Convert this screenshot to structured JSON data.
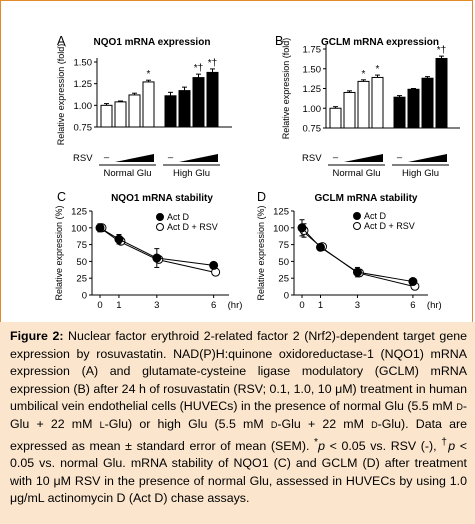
{
  "chart_data": [
    {
      "panel": "A",
      "type": "bar",
      "title": "NQO1 mRNA expression",
      "ylabel": "Relative expression (fold)",
      "ylim": [
        0.75,
        1.5
      ],
      "yticks": [
        "0.75",
        "1.00",
        "1.25",
        "1.50"
      ],
      "treatment_label": "RSV",
      "treatment_levels": [
        "–",
        "",
        "",
        ""
      ],
      "groups": [
        "Normal Glu",
        "High Glu"
      ],
      "categories": [
        "Normal Glu –",
        "Normal Glu 0.1",
        "Normal Glu 1.0",
        "Normal Glu 10",
        "High Glu –",
        "High Glu 0.1",
        "High Glu 1.0",
        "High Glu 10"
      ],
      "values": [
        1.0,
        1.04,
        1.12,
        1.27,
        1.11,
        1.17,
        1.32,
        1.38
      ],
      "errors": [
        0.02,
        0.01,
        0.02,
        0.02,
        0.04,
        0.04,
        0.04,
        0.04
      ],
      "bar_fill": [
        "white",
        "white",
        "white",
        "white",
        "black",
        "black",
        "black",
        "black"
      ],
      "annotations": [
        "",
        "",
        "",
        "*",
        "",
        "",
        "*†",
        "*†"
      ]
    },
    {
      "panel": "B",
      "type": "bar",
      "title": "GCLM mRNA expression",
      "ylabel": "Relative expression (fold)",
      "ylim": [
        0.75,
        1.75
      ],
      "yticks": [
        "0.75",
        "1.00",
        "1.25",
        "1.50",
        "1.75"
      ],
      "treatment_label": "RSV",
      "treatment_levels": [
        "–",
        "",
        "",
        ""
      ],
      "groups": [
        "Normal Glu",
        "High Glu"
      ],
      "categories": [
        "Normal Glu –",
        "Normal Glu 0.1",
        "Normal Glu 1.0",
        "Normal Glu 10",
        "High Glu –",
        "High Glu 0.1",
        "High Glu 1.0",
        "High Glu 10"
      ],
      "values": [
        1.0,
        1.2,
        1.34,
        1.39,
        1.14,
        1.24,
        1.38,
        1.63
      ],
      "errors": [
        0.02,
        0.02,
        0.02,
        0.03,
        0.02,
        0.01,
        0.02,
        0.03
      ],
      "bar_fill": [
        "white",
        "white",
        "white",
        "white",
        "black",
        "black",
        "black",
        "black"
      ],
      "annotations": [
        "",
        "",
        "*",
        "*",
        "",
        "",
        "",
        "*†"
      ]
    },
    {
      "panel": "C",
      "type": "line",
      "title": "NQO1 mRNA stability",
      "ylabel": "Relative expression (%)",
      "xlabel": "(hr)",
      "ylim": [
        0,
        125
      ],
      "yticks": [
        "0",
        "25",
        "50",
        "75",
        "100",
        "125"
      ],
      "xticks": [
        "0",
        "1",
        "3",
        "6"
      ],
      "legend": [
        "Act D",
        "Act D + RSV"
      ],
      "series": [
        {
          "name": "Act D",
          "marker": "filled",
          "x": [
            0,
            1,
            3,
            6
          ],
          "y": [
            100,
            83,
            55,
            44
          ],
          "err": [
            6,
            7,
            14,
            4
          ]
        },
        {
          "name": "Act D + RSV",
          "marker": "open",
          "x": [
            0,
            1,
            3,
            6
          ],
          "y": [
            100,
            80,
            53,
            34
          ],
          "err": [
            5,
            5,
            4,
            5
          ]
        }
      ]
    },
    {
      "panel": "D",
      "type": "line",
      "title": "GCLM mRNA stability",
      "ylabel": "Relative expression (%)",
      "xlabel": "(hr)",
      "ylim": [
        0,
        125
      ],
      "yticks": [
        "0",
        "25",
        "50",
        "75",
        "100",
        "125"
      ],
      "xticks": [
        "0",
        "1",
        "3",
        "6"
      ],
      "legend": [
        "Act D",
        "Act D + RSV"
      ],
      "series": [
        {
          "name": "Act D",
          "marker": "filled",
          "x": [
            0,
            1,
            3,
            6
          ],
          "y": [
            100,
            71,
            34,
            20
          ],
          "err": [
            12,
            4,
            7,
            4
          ]
        },
        {
          "name": "Act D + RSV",
          "marker": "open",
          "x": [
            0,
            1,
            3,
            6
          ],
          "y": [
            96,
            72,
            33,
            13
          ],
          "err": [
            10,
            4,
            5,
            4
          ]
        }
      ]
    }
  ],
  "caption": {
    "label": "Figure 2:",
    "s1": " Nuclear factor erythroid 2-related factor 2 (Nrf2)-dependent target gene expression by rosuvastatin. NAD(P)H:quinone oxidoreductase-1 (NQO1) mRNA expression (A) and glutamate-cysteine ligase modulatory (GCLM) mRNA expression (B) after 24 h of rosuvastatin (RSV; 0.1, 1.0, 10 μM) treatment in human umbilical vein endothelial cells (HUVECs) in the presence of normal Glu (5.5 mM ",
    "d1": "d",
    "s2": "-Glu + 22 mM ",
    "l1": "l",
    "s3": "-Glu) or high Glu (5.5 mM ",
    "d2": "d",
    "s4": "-Glu + 22 mM ",
    "d3": "d",
    "s5": "-Glu). Data are expressed as mean ± standard error of mean (SEM). ",
    "star": "*",
    "p1": "p",
    "s6": " < 0.05 vs. RSV (-), ",
    "dagger": "†",
    "p2": "p",
    "s7": " < 0.05 vs. normal Glu. mRNA stability of NQO1 (C) and GCLM (D) after treatment with 10 μM RSV in the presence of normal Glu, assessed in HUVECs by using 1.0 μg/mL actinomycin D (Act D) chase assays."
  }
}
